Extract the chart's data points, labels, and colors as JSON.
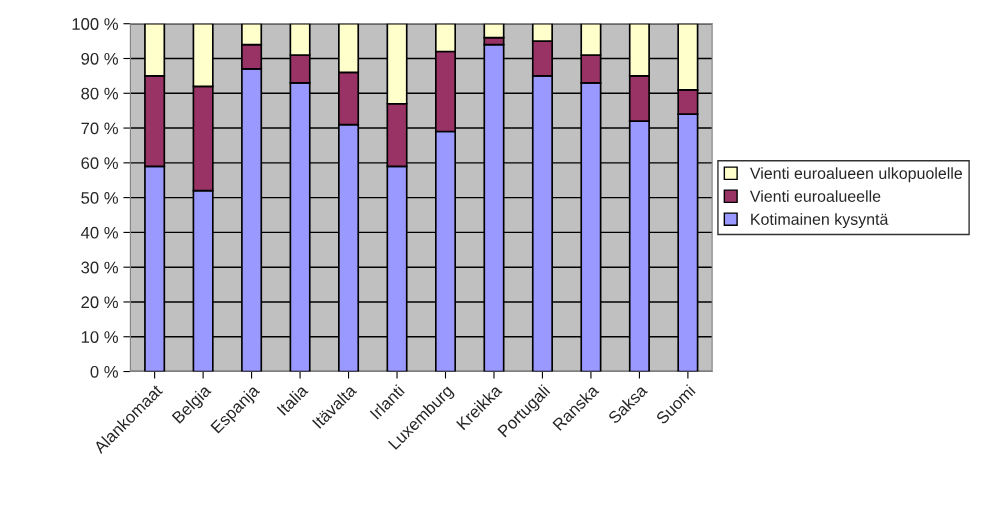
{
  "chart_data": {
    "type": "bar",
    "stacked": true,
    "categories": [
      "Alankomaat",
      "Belgia",
      "Espanja",
      "Italia",
      "Itävalta",
      "Irlanti",
      "Luxemburg",
      "Kreikka",
      "Portugali",
      "Ranska",
      "Saksa",
      "Suomi"
    ],
    "series": [
      {
        "name": "Kotimainen kysyntä",
        "color": "#9999ff",
        "values": [
          59,
          52,
          87,
          83,
          71,
          59,
          69,
          94,
          85,
          83,
          72,
          74
        ]
      },
      {
        "name": "Vienti euroalueelle",
        "color": "#993366",
        "values": [
          26,
          30,
          7,
          8,
          15,
          18,
          23,
          2,
          10,
          8,
          13,
          7
        ]
      },
      {
        "name": "Vienti euroalueen ulkopuolelle",
        "color": "#ffffcc",
        "values": [
          15,
          18,
          6,
          9,
          14,
          23,
          8,
          4,
          5,
          9,
          15,
          19
        ]
      }
    ],
    "ylim": [
      0,
      100
    ],
    "yticks": [
      {
        "value": 0,
        "label": "0 %"
      },
      {
        "value": 10,
        "label": "10 %"
      },
      {
        "value": 20,
        "label": "20 %"
      },
      {
        "value": 30,
        "label": "30 %"
      },
      {
        "value": 40,
        "label": "40 %"
      },
      {
        "value": 50,
        "label": "50 %"
      },
      {
        "value": 60,
        "label": "60 %"
      },
      {
        "value": 70,
        "label": "70 %"
      },
      {
        "value": 80,
        "label": "80 %"
      },
      {
        "value": 90,
        "label": "90 %"
      },
      {
        "value": 100,
        "label": "100 %"
      }
    ],
    "grid": "y",
    "legend": "right"
  }
}
